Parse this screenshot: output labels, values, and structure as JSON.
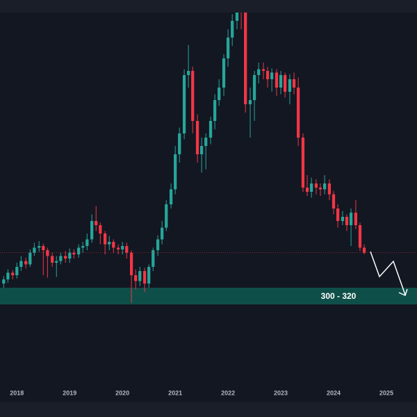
{
  "chart_data": {
    "type": "candlestick",
    "x": [
      2017.75,
      2017.83,
      2017.92,
      2018,
      2018.08,
      2018.17,
      2018.25,
      2018.33,
      2018.42,
      2018.5,
      2018.58,
      2018.67,
      2018.75,
      2018.83,
      2018.92,
      2019,
      2019.08,
      2019.17,
      2019.25,
      2019.33,
      2019.42,
      2019.5,
      2019.58,
      2019.67,
      2019.75,
      2019.83,
      2019.92,
      2020,
      2020.08,
      2020.17,
      2020.25,
      2020.33,
      2020.42,
      2020.5,
      2020.58,
      2020.67,
      2020.75,
      2020.83,
      2020.92,
      2021,
      2021.08,
      2021.17,
      2021.25,
      2021.33,
      2021.42,
      2021.5,
      2021.58,
      2021.67,
      2021.75,
      2021.83,
      2021.92,
      2022,
      2022.08,
      2022.17,
      2022.25,
      2022.33,
      2022.42,
      2022.5,
      2022.58,
      2022.67,
      2022.75,
      2022.83,
      2022.92,
      2023,
      2023.08,
      2023.17,
      2023.25,
      2023.33,
      2023.42,
      2023.5,
      2023.58,
      2023.67,
      2023.75,
      2023.83,
      2023.92,
      2024,
      2024.08,
      2024.17,
      2024.25,
      2024.33,
      2024.42,
      2024.5,
      2024.58
    ],
    "open": [
      325,
      330,
      338,
      335,
      345,
      352,
      348,
      362,
      368,
      370,
      365,
      358,
      350,
      352,
      358,
      355,
      362,
      360,
      368,
      370,
      378,
      400,
      395,
      385,
      372,
      375,
      368,
      366,
      370,
      362,
      335,
      328,
      340,
      325,
      345,
      365,
      378,
      392,
      420,
      438,
      480,
      505,
      575,
      580,
      520,
      480,
      490,
      500,
      520,
      545,
      560,
      595,
      620,
      640,
      660,
      650,
      540,
      545,
      575,
      582,
      580,
      570,
      578,
      560,
      575,
      555,
      570,
      560,
      500,
      440,
      435,
      445,
      440,
      438,
      445,
      432,
      415,
      400,
      405,
      395,
      410,
      395,
      368
    ],
    "high": [
      334,
      342,
      341,
      350,
      358,
      356,
      366,
      374,
      376,
      373,
      368,
      362,
      358,
      362,
      364,
      367,
      366,
      372,
      375,
      385,
      408,
      418,
      398,
      388,
      382,
      378,
      372,
      375,
      374,
      365,
      342,
      345,
      344,
      348,
      368,
      383,
      400,
      425,
      445,
      490,
      512,
      582,
      611,
      585,
      528,
      500,
      505,
      525,
      552,
      570,
      600,
      630,
      648,
      672,
      670,
      655,
      560,
      580,
      590,
      590,
      585,
      583,
      582,
      580,
      578,
      576,
      578,
      572,
      505,
      455,
      452,
      450,
      445,
      455,
      450,
      436,
      420,
      412,
      408,
      415,
      425,
      398,
      372
    ],
    "low": [
      320,
      326,
      330,
      331,
      340,
      343,
      345,
      358,
      363,
      335,
      332,
      345,
      333,
      348,
      350,
      350,
      355,
      356,
      362,
      365,
      374,
      388,
      372,
      360,
      365,
      362,
      360,
      360,
      355,
      302,
      318,
      322,
      315,
      320,
      340,
      358,
      372,
      388,
      415,
      432,
      470,
      498,
      560,
      505,
      470,
      458,
      462,
      492,
      510,
      538,
      550,
      585,
      610,
      630,
      630,
      530,
      500,
      520,
      565,
      570,
      560,
      555,
      550,
      552,
      548,
      540,
      552,
      490,
      435,
      430,
      428,
      432,
      430,
      432,
      425,
      408,
      392,
      395,
      388,
      370,
      390,
      364,
      360
    ],
    "close": [
      330,
      338,
      335,
      345,
      352,
      348,
      362,
      368,
      370,
      365,
      358,
      350,
      352,
      358,
      355,
      362,
      360,
      368,
      370,
      378,
      400,
      395,
      385,
      372,
      375,
      368,
      366,
      370,
      362,
      335,
      328,
      340,
      325,
      345,
      365,
      378,
      392,
      420,
      438,
      480,
      505,
      575,
      580,
      520,
      480,
      490,
      500,
      520,
      545,
      560,
      595,
      620,
      640,
      660,
      650,
      540,
      545,
      575,
      582,
      580,
      570,
      578,
      560,
      575,
      555,
      570,
      560,
      500,
      440,
      435,
      445,
      440,
      438,
      445,
      432,
      415,
      400,
      405,
      395,
      410,
      395,
      368,
      362
    ],
    "up_color": "#26a69a",
    "down_color": "#f23645",
    "xlim": [
      2017.68,
      2025.58
    ],
    "xticks": [
      2018,
      2019,
      2020,
      2021,
      2022,
      2023,
      2024,
      2025
    ],
    "ylim": [
      200,
      650
    ],
    "zone": {
      "from": 300,
      "to": 320,
      "label": "300 - 320",
      "color": "#0f4f49"
    }
  }
}
